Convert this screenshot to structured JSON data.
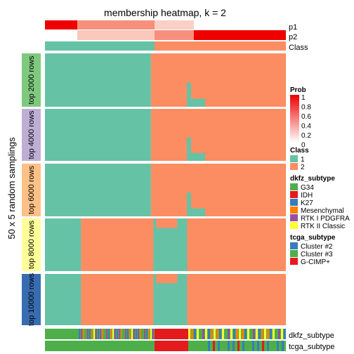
{
  "chart_data": {
    "type": "heatmap",
    "title": "membership heatmap, k = 2",
    "ylabel": "50 x 5 random samplings",
    "top_annotations": [
      "p1",
      "p2",
      "Class"
    ],
    "bottom_annotations": [
      "dkfz_subtype",
      "tcga_subtype"
    ],
    "class_colors": {
      "1": "#66C2A5",
      "2": "#FC8D62"
    },
    "panels": [
      {
        "label": "top 2000 rows",
        "color": "#7FC97F",
        "class1_fraction": 0.44,
        "class2_fraction": 0.56
      },
      {
        "label": "top 4000 rows",
        "color": "#BEAED4",
        "class1_fraction": 0.44,
        "class2_fraction": 0.56
      },
      {
        "label": "top 6000 rows",
        "color": "#FDC086",
        "class1_fraction": 0.44,
        "class2_fraction": 0.56
      },
      {
        "label": "top 8000 rows",
        "color": "#FFFF99",
        "class1_fraction": 0.15,
        "class2_fraction": 0.85
      },
      {
        "label": "top 10000 rows",
        "color": "#386CB0",
        "class1_fraction": 0.15,
        "class2_fraction": 0.85
      }
    ],
    "legends": [
      {
        "title": "Prob",
        "ticks": [
          "1",
          "0.8",
          "0.6",
          "0.4",
          "0.2",
          "0"
        ],
        "colors": [
          "#FFFFFF",
          "#EE0000"
        ]
      },
      {
        "title": "Class",
        "items": [
          {
            "label": "1",
            "color": "#66C2A5"
          },
          {
            "label": "2",
            "color": "#FC8D62"
          }
        ]
      },
      {
        "title": "dkfz_subtype",
        "items": [
          {
            "label": "G34",
            "color": "#4DAF4A"
          },
          {
            "label": "IDH",
            "color": "#E41A1C"
          },
          {
            "label": "K27",
            "color": "#377EB8"
          },
          {
            "label": "Mesenchymal",
            "color": "#FF7F00"
          },
          {
            "label": "RTK I PDGFRA",
            "color": "#984EA3"
          },
          {
            "label": "RTK II Classic",
            "color": "#FFFF33"
          }
        ]
      },
      {
        "title": "tcga_subtype",
        "items": [
          {
            "label": "Cluster #2",
            "color": "#377EB8"
          },
          {
            "label": "Cluster #3",
            "color": "#4DAF4A"
          },
          {
            "label": "G-CIMP+",
            "color": "#E41A1C"
          }
        ]
      }
    ]
  }
}
